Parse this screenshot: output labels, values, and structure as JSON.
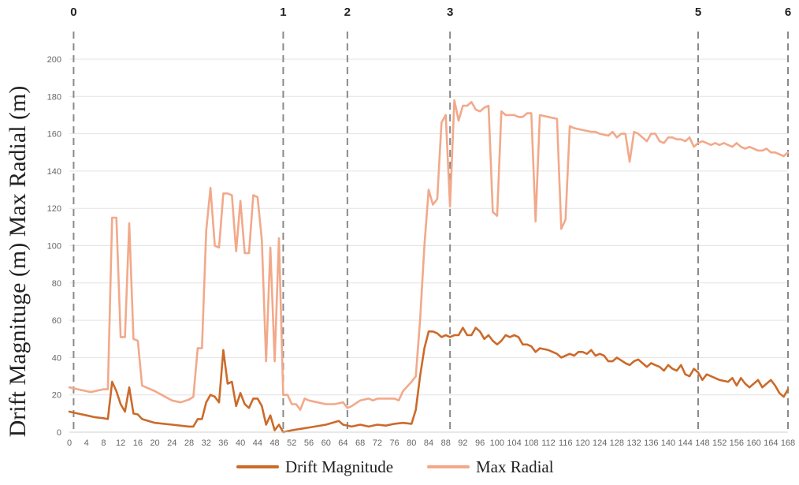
{
  "chart_data": {
    "type": "line",
    "xlabel": "",
    "ylabel": "Drift Magnituge (m) Max Radial (m)",
    "ylim": [
      0,
      200
    ],
    "xlim": [
      0,
      168
    ],
    "y_ticks": [
      0,
      20,
      40,
      60,
      80,
      100,
      120,
      140,
      160,
      180,
      200
    ],
    "x_ticks": [
      0,
      4,
      8,
      12,
      16,
      20,
      24,
      28,
      32,
      36,
      40,
      44,
      48,
      52,
      56,
      60,
      64,
      68,
      72,
      76,
      80,
      84,
      88,
      92,
      96,
      100,
      104,
      108,
      112,
      116,
      120,
      124,
      128,
      132,
      136,
      140,
      144,
      148,
      152,
      156,
      160,
      164,
      168
    ],
    "grid": "horizontal",
    "legend_position": "bottom",
    "markers": [
      {
        "label": "0",
        "x": 1
      },
      {
        "label": "1",
        "x": 50
      },
      {
        "label": "2",
        "x": 65
      },
      {
        "label": "3",
        "x": 89
      },
      {
        "label": "5",
        "x": 147
      },
      {
        "label": "6",
        "x": 168
      }
    ],
    "series": [
      {
        "name": "Drift Magnitude",
        "color": "#cc6a2a",
        "points": [
          [
            0,
            11
          ],
          [
            2,
            10
          ],
          [
            4,
            9
          ],
          [
            6,
            8
          ],
          [
            8,
            7.5
          ],
          [
            9,
            7
          ],
          [
            10,
            27
          ],
          [
            11,
            22
          ],
          [
            12,
            15
          ],
          [
            13,
            11
          ],
          [
            14,
            24
          ],
          [
            15,
            10
          ],
          [
            16,
            9.5
          ],
          [
            17,
            7
          ],
          [
            20,
            5
          ],
          [
            24,
            4
          ],
          [
            28,
            3
          ],
          [
            29,
            3
          ],
          [
            30,
            7
          ],
          [
            31,
            7
          ],
          [
            32,
            16
          ],
          [
            33,
            20
          ],
          [
            34,
            19
          ],
          [
            35,
            16
          ],
          [
            36,
            44
          ],
          [
            37,
            26
          ],
          [
            38,
            27
          ],
          [
            39,
            14
          ],
          [
            40,
            21
          ],
          [
            41,
            15
          ],
          [
            42,
            13
          ],
          [
            43,
            18
          ],
          [
            44,
            18
          ],
          [
            45,
            14
          ],
          [
            46,
            4
          ],
          [
            47,
            9
          ],
          [
            48,
            1
          ],
          [
            49,
            4
          ],
          [
            50,
            0
          ],
          [
            52,
            1
          ],
          [
            56,
            2.5
          ],
          [
            60,
            4
          ],
          [
            63,
            6
          ],
          [
            64,
            4
          ],
          [
            66,
            3
          ],
          [
            68,
            4
          ],
          [
            70,
            3
          ],
          [
            72,
            4
          ],
          [
            74,
            3.5
          ],
          [
            76,
            4.5
          ],
          [
            78,
            5
          ],
          [
            80,
            4.5
          ],
          [
            81,
            12
          ],
          [
            82,
            30
          ],
          [
            83,
            45
          ],
          [
            84,
            54
          ],
          [
            85,
            54
          ],
          [
            86,
            53
          ],
          [
            87,
            51
          ],
          [
            88,
            52
          ],
          [
            89,
            51
          ],
          [
            90,
            52
          ],
          [
            91,
            52
          ],
          [
            92,
            56
          ],
          [
            93,
            52
          ],
          [
            94,
            52
          ],
          [
            95,
            56
          ],
          [
            96,
            54
          ],
          [
            97,
            50
          ],
          [
            98,
            52
          ],
          [
            99,
            49
          ],
          [
            100,
            47
          ],
          [
            101,
            49
          ],
          [
            102,
            52
          ],
          [
            103,
            51
          ],
          [
            104,
            52
          ],
          [
            105,
            51
          ],
          [
            106,
            47
          ],
          [
            107,
            47
          ],
          [
            108,
            46
          ],
          [
            109,
            43
          ],
          [
            110,
            45
          ],
          [
            112,
            44
          ],
          [
            114,
            42
          ],
          [
            115,
            40
          ],
          [
            116,
            41
          ],
          [
            117,
            42
          ],
          [
            118,
            41
          ],
          [
            119,
            43
          ],
          [
            120,
            43
          ],
          [
            121,
            42
          ],
          [
            122,
            44
          ],
          [
            123,
            41
          ],
          [
            124,
            42
          ],
          [
            125,
            41
          ],
          [
            126,
            38
          ],
          [
            127,
            38
          ],
          [
            128,
            40
          ],
          [
            130,
            37
          ],
          [
            131,
            36
          ],
          [
            132,
            38
          ],
          [
            133,
            39
          ],
          [
            134,
            37
          ],
          [
            135,
            35
          ],
          [
            136,
            37
          ],
          [
            137,
            36
          ],
          [
            138,
            35
          ],
          [
            139,
            33
          ],
          [
            140,
            36
          ],
          [
            141,
            34
          ],
          [
            142,
            33
          ],
          [
            143,
            36
          ],
          [
            144,
            31
          ],
          [
            145,
            30
          ],
          [
            146,
            34
          ],
          [
            147,
            32
          ],
          [
            148,
            28
          ],
          [
            149,
            31
          ],
          [
            150,
            30
          ],
          [
            152,
            28
          ],
          [
            154,
            27
          ],
          [
            155,
            29
          ],
          [
            156,
            25
          ],
          [
            157,
            29
          ],
          [
            158,
            26
          ],
          [
            159,
            24
          ],
          [
            160,
            26
          ],
          [
            161,
            28
          ],
          [
            162,
            24
          ],
          [
            163,
            26
          ],
          [
            164,
            28
          ],
          [
            165,
            25
          ],
          [
            166,
            21
          ],
          [
            167,
            19
          ],
          [
            168,
            23
          ]
        ]
      },
      {
        "name": "Max Radial",
        "color": "#f2a98a",
        "points": [
          [
            0,
            24
          ],
          [
            2,
            23
          ],
          [
            4,
            22
          ],
          [
            5,
            21.5
          ],
          [
            6,
            22
          ],
          [
            8,
            23
          ],
          [
            9,
            23
          ],
          [
            10,
            115
          ],
          [
            11,
            115
          ],
          [
            12,
            51
          ],
          [
            13,
            51
          ],
          [
            14,
            112
          ],
          [
            15,
            50
          ],
          [
            16,
            49
          ],
          [
            17,
            25
          ],
          [
            20,
            22
          ],
          [
            24,
            17
          ],
          [
            26,
            16
          ],
          [
            28,
            17.5
          ],
          [
            29,
            19
          ],
          [
            30,
            45
          ],
          [
            31,
            45
          ],
          [
            32,
            108
          ],
          [
            33,
            131
          ],
          [
            34,
            100
          ],
          [
            35,
            99
          ],
          [
            36,
            128
          ],
          [
            37,
            128
          ],
          [
            38,
            127
          ],
          [
            39,
            97
          ],
          [
            40,
            124
          ],
          [
            41,
            96
          ],
          [
            42,
            96
          ],
          [
            43,
            127
          ],
          [
            44,
            126
          ],
          [
            45,
            103
          ],
          [
            46,
            38
          ],
          [
            47,
            99
          ],
          [
            48,
            38
          ],
          [
            49,
            104
          ],
          [
            50,
            20
          ],
          [
            51,
            20
          ],
          [
            52,
            15
          ],
          [
            53,
            15
          ],
          [
            54,
            12
          ],
          [
            55,
            18
          ],
          [
            56,
            17
          ],
          [
            58,
            16
          ],
          [
            60,
            15
          ],
          [
            62,
            15
          ],
          [
            64,
            16
          ],
          [
            65,
            13
          ],
          [
            66,
            14
          ],
          [
            68,
            17
          ],
          [
            70,
            18
          ],
          [
            71,
            17
          ],
          [
            72,
            18
          ],
          [
            74,
            18
          ],
          [
            76,
            18
          ],
          [
            77,
            17
          ],
          [
            78,
            22
          ],
          [
            80,
            27
          ],
          [
            81,
            30
          ],
          [
            82,
            60
          ],
          [
            83,
            100
          ],
          [
            84,
            130
          ],
          [
            85,
            122
          ],
          [
            86,
            125
          ],
          [
            87,
            166
          ],
          [
            88,
            170
          ],
          [
            89,
            121
          ],
          [
            90,
            178
          ],
          [
            91,
            167
          ],
          [
            92,
            175
          ],
          [
            93,
            175
          ],
          [
            94,
            177
          ],
          [
            95,
            173
          ],
          [
            96,
            172
          ],
          [
            97,
            174
          ],
          [
            98,
            175
          ],
          [
            99,
            118
          ],
          [
            100,
            116
          ],
          [
            101,
            172
          ],
          [
            102,
            170
          ],
          [
            103,
            170
          ],
          [
            104,
            170
          ],
          [
            105,
            169
          ],
          [
            106,
            169
          ],
          [
            107,
            171
          ],
          [
            108,
            171
          ],
          [
            109,
            113
          ],
          [
            110,
            170
          ],
          [
            112,
            169
          ],
          [
            114,
            168
          ],
          [
            115,
            109
          ],
          [
            116,
            114
          ],
          [
            117,
            164
          ],
          [
            118,
            163
          ],
          [
            120,
            162
          ],
          [
            122,
            161
          ],
          [
            123,
            161
          ],
          [
            124,
            160
          ],
          [
            126,
            159
          ],
          [
            127,
            161
          ],
          [
            128,
            158
          ],
          [
            129,
            160
          ],
          [
            130,
            160
          ],
          [
            131,
            145
          ],
          [
            132,
            161
          ],
          [
            133,
            160
          ],
          [
            134,
            158
          ],
          [
            135,
            156
          ],
          [
            136,
            160
          ],
          [
            137,
            160
          ],
          [
            138,
            156
          ],
          [
            139,
            155
          ],
          [
            140,
            158
          ],
          [
            141,
            158
          ],
          [
            142,
            157
          ],
          [
            143,
            157
          ],
          [
            144,
            156
          ],
          [
            145,
            158
          ],
          [
            146,
            153
          ],
          [
            147,
            155
          ],
          [
            148,
            156
          ],
          [
            149,
            155
          ],
          [
            150,
            154
          ],
          [
            151,
            155
          ],
          [
            152,
            154
          ],
          [
            153,
            155
          ],
          [
            154,
            154
          ],
          [
            155,
            153
          ],
          [
            156,
            155
          ],
          [
            157,
            153
          ],
          [
            158,
            152
          ],
          [
            159,
            153
          ],
          [
            160,
            152
          ],
          [
            161,
            151
          ],
          [
            162,
            151
          ],
          [
            163,
            152
          ],
          [
            164,
            150
          ],
          [
            165,
            150
          ],
          [
            166,
            149
          ],
          [
            167,
            148
          ],
          [
            168,
            150
          ]
        ]
      }
    ]
  }
}
